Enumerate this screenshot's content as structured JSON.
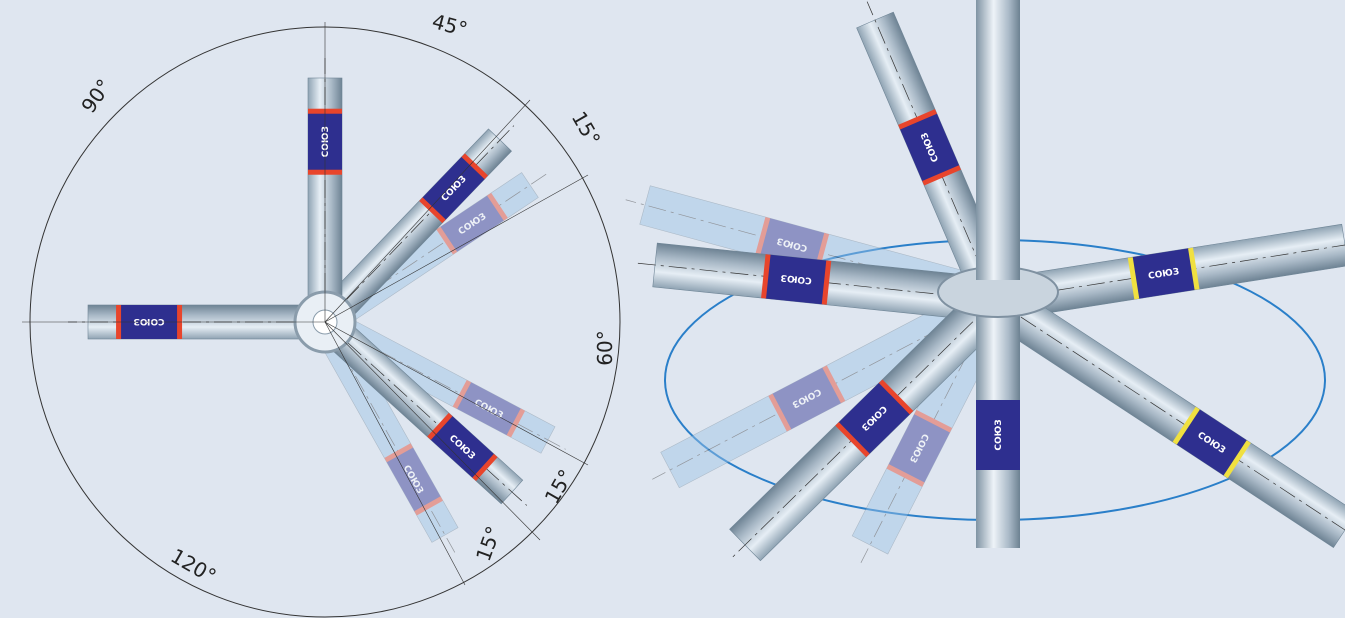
{
  "left_diagram": {
    "angle_labels": [
      "45°",
      "15°",
      "60°",
      "15°",
      "15°",
      "120°",
      "90°"
    ],
    "tube_label": "СОЮЗ"
  },
  "right_view": {
    "tube_label": "СОЮЗ"
  }
}
